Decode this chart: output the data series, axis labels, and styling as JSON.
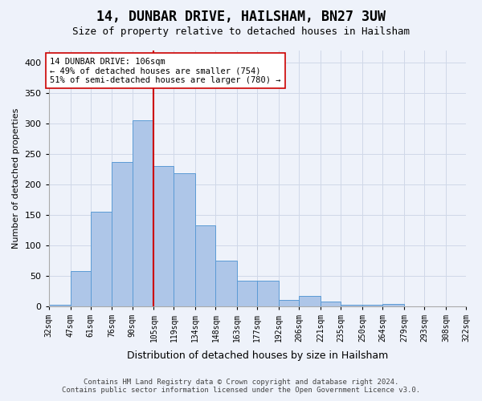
{
  "title": "14, DUNBAR DRIVE, HAILSHAM, BN27 3UW",
  "subtitle": "Size of property relative to detached houses in Hailsham",
  "xlabel": "Distribution of detached houses by size in Hailsham",
  "ylabel": "Number of detached properties",
  "bar_edges": [
    32,
    47,
    61,
    76,
    90,
    105,
    119,
    134,
    148,
    163,
    177,
    192,
    206,
    221,
    235,
    250,
    264,
    279,
    293,
    308,
    322
  ],
  "bar_heights": [
    2,
    57,
    155,
    236,
    305,
    230,
    218,
    133,
    75,
    42,
    42,
    10,
    16,
    7,
    2,
    2,
    3,
    0,
    0,
    0
  ],
  "bar_color": "#aec6e8",
  "bar_edge_color": "#5b9bd5",
  "reference_line_x": 105,
  "reference_line_color": "#cc0000",
  "annotation_text": "14 DUNBAR DRIVE: 106sqm\n← 49% of detached houses are smaller (754)\n51% of semi-detached houses are larger (780) →",
  "annotation_box_color": "#ffffff",
  "annotation_box_edge_color": "#cc0000",
  "ylim": [
    0,
    420
  ],
  "yticks": [
    0,
    50,
    100,
    150,
    200,
    250,
    300,
    350,
    400
  ],
  "grid_color": "#d0d8e8",
  "footer_line1": "Contains HM Land Registry data © Crown copyright and database right 2024.",
  "footer_line2": "Contains public sector information licensed under the Open Government Licence v3.0.",
  "tick_labels": [
    "32sqm",
    "47sqm",
    "61sqm",
    "76sqm",
    "90sqm",
    "105sqm",
    "119sqm",
    "134sqm",
    "148sqm",
    "163sqm",
    "177sqm",
    "192sqm",
    "206sqm",
    "221sqm",
    "235sqm",
    "250sqm",
    "264sqm",
    "279sqm",
    "293sqm",
    "308sqm",
    "322sqm"
  ],
  "bg_color": "#eef2fa"
}
